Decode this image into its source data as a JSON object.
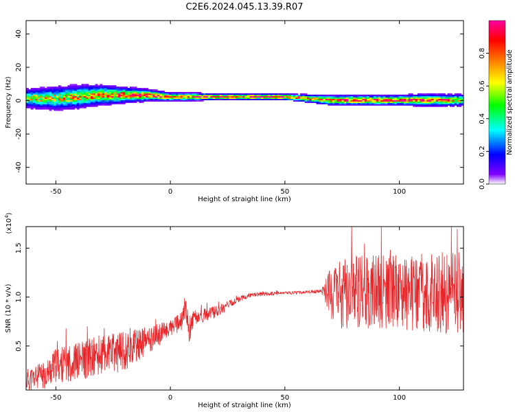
{
  "title": "C2E6.2024.045.13.39.R07",
  "chart_data": [
    {
      "type": "heatmap",
      "title": "C2E6.2024.045.13.39.R07",
      "xlabel": "Height of straight line (km)",
      "ylabel": "Frequency (Hz)",
      "xlim": [
        -63,
        128
      ],
      "ylim": [
        -50,
        48
      ],
      "x_ticks": [
        "-50",
        "0",
        "50",
        "100"
      ],
      "y_ticks": [
        "-40",
        "-20",
        "0",
        "20",
        "40"
      ],
      "colorbar": {
        "label": "Normalized spectral amplitude",
        "range": [
          0.0,
          1.0
        ],
        "ticks": [
          "0.0",
          "0.2",
          "0.4",
          "0.6",
          "0.8"
        ],
        "colors": [
          "#ffffff",
          "#8000ff",
          "#0000ff",
          "#00ffff",
          "#00ff00",
          "#ffff00",
          "#ff8000",
          "#ff0000",
          "#ff00a0"
        ]
      },
      "band": {
        "x": [
          -63,
          -50,
          -40,
          -30,
          -20,
          -10,
          0,
          10,
          20,
          30,
          40,
          50,
          60,
          70,
          80,
          90,
          100,
          110,
          120,
          128
        ],
        "center_hz": [
          1,
          1,
          2,
          3,
          3,
          3,
          2,
          2,
          2,
          2,
          2,
          2,
          1,
          0,
          0,
          0,
          0,
          0,
          0,
          0
        ],
        "width_hz": [
          10,
          12,
          12,
          10,
          8,
          6,
          4,
          4,
          3,
          3,
          3,
          3,
          4,
          5,
          5,
          5,
          5,
          6,
          6,
          6
        ],
        "peak_amplitude": [
          0.5,
          0.55,
          0.6,
          0.7,
          0.75,
          0.8,
          0.85,
          0.85,
          0.9,
          0.95,
          0.95,
          0.9,
          0.7,
          0.8,
          0.85,
          0.85,
          0.85,
          0.8,
          0.75,
          0.6
        ]
      },
      "grid": false
    },
    {
      "type": "line",
      "xlabel": "Height of straight line (km)",
      "ylabel": "SNR (10 * v/v)",
      "y_multiplier": "(x10",
      "y_exponent": "4",
      "xlim": [
        -63,
        128
      ],
      "ylim": [
        0.05,
        1.72
      ],
      "x_ticks": [
        "-50",
        "0",
        "50",
        "100"
      ],
      "y_ticks": [
        "0.5",
        "1.0",
        "1.5"
      ],
      "series": [
        {
          "color": "#e8262a",
          "x": [
            -63,
            -55,
            -50,
            -40,
            -30,
            -20,
            -10,
            0,
            5,
            7,
            8,
            10,
            20,
            30,
            35,
            40,
            50,
            60,
            66,
            70,
            72,
            80,
            90,
            100,
            110,
            120,
            128
          ],
          "y": [
            0.15,
            0.2,
            0.3,
            0.35,
            0.4,
            0.45,
            0.55,
            0.68,
            0.75,
            0.9,
            0.62,
            0.78,
            0.85,
            0.98,
            1.02,
            1.03,
            1.04,
            1.05,
            1.06,
            1.05,
            1.0,
            1.05,
            1.05,
            1.05,
            1.05,
            1.05,
            1.05
          ],
          "noise": [
            0.12,
            0.14,
            0.18,
            0.2,
            0.22,
            0.2,
            0.15,
            0.08,
            0.1,
            0.15,
            0.12,
            0.08,
            0.06,
            0.03,
            0.02,
            0.02,
            0.015,
            0.015,
            0.02,
            0.25,
            0.35,
            0.38,
            0.38,
            0.38,
            0.4,
            0.42,
            0.42
          ]
        }
      ],
      "grid": false
    }
  ]
}
